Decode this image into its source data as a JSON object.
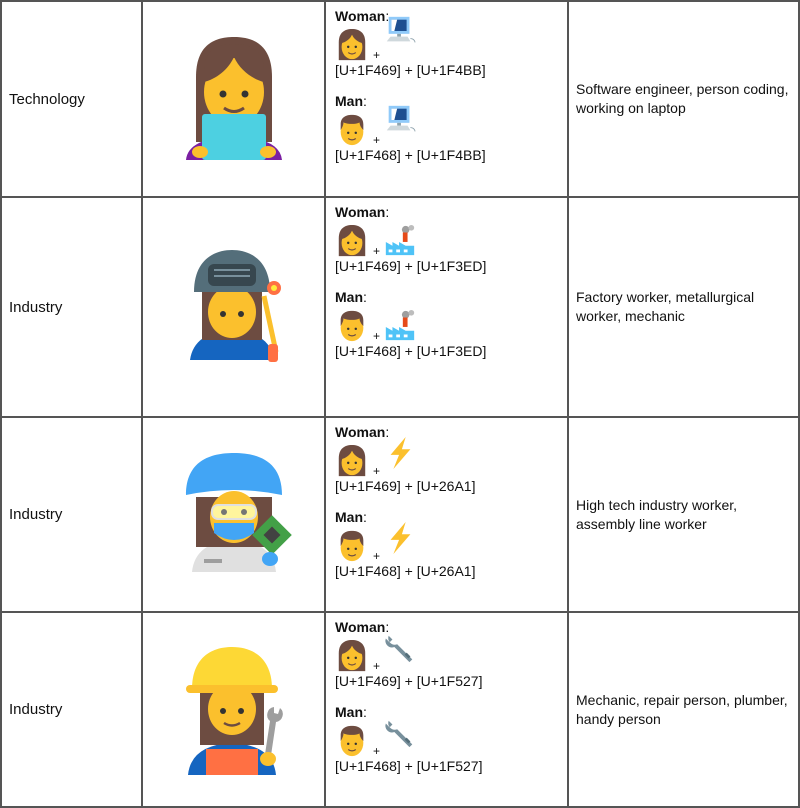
{
  "rows": [
    {
      "category": "Technology",
      "image": "woman-technologist",
      "woman_label": "Woman",
      "man_label": "Man",
      "object_icon": "computer-icon",
      "woman_code": "[U+1F469] + [U+1F4BB]",
      "man_code": "[U+1F468] + [U+1F4BB]",
      "plus": "+",
      "description": "Software engineer, person coding, working on laptop"
    },
    {
      "category": "Industry",
      "image": "woman-factory-worker-welder",
      "woman_label": "Woman",
      "man_label": "Man",
      "object_icon": "factory-icon",
      "woman_code": "[U+1F469] + [U+1F3ED]",
      "man_code": "[U+1F468] + [U+1F3ED]",
      "plus": "+",
      "description": "Factory worker, metallurgical worker, mechanic"
    },
    {
      "category": "Industry",
      "image": "woman-hightech-worker",
      "woman_label": "Woman",
      "man_label": "Man",
      "object_icon": "lightning-icon",
      "woman_code": "[U+1F469] + [U+26A1]",
      "man_code": "[U+1F468] + [U+26A1]",
      "plus": "+",
      "description": "High tech industry worker, assembly line worker"
    },
    {
      "category": "Industry",
      "image": "woman-mechanic",
      "woman_label": "Woman",
      "man_label": "Man",
      "object_icon": "wrench-icon",
      "woman_code": "[U+1F469] + [U+1F527]",
      "man_code": "[U+1F468] + [U+1F527]",
      "plus": "+",
      "description": "Mechanic, repair person, plumber, handy person"
    }
  ],
  "colon": ":"
}
